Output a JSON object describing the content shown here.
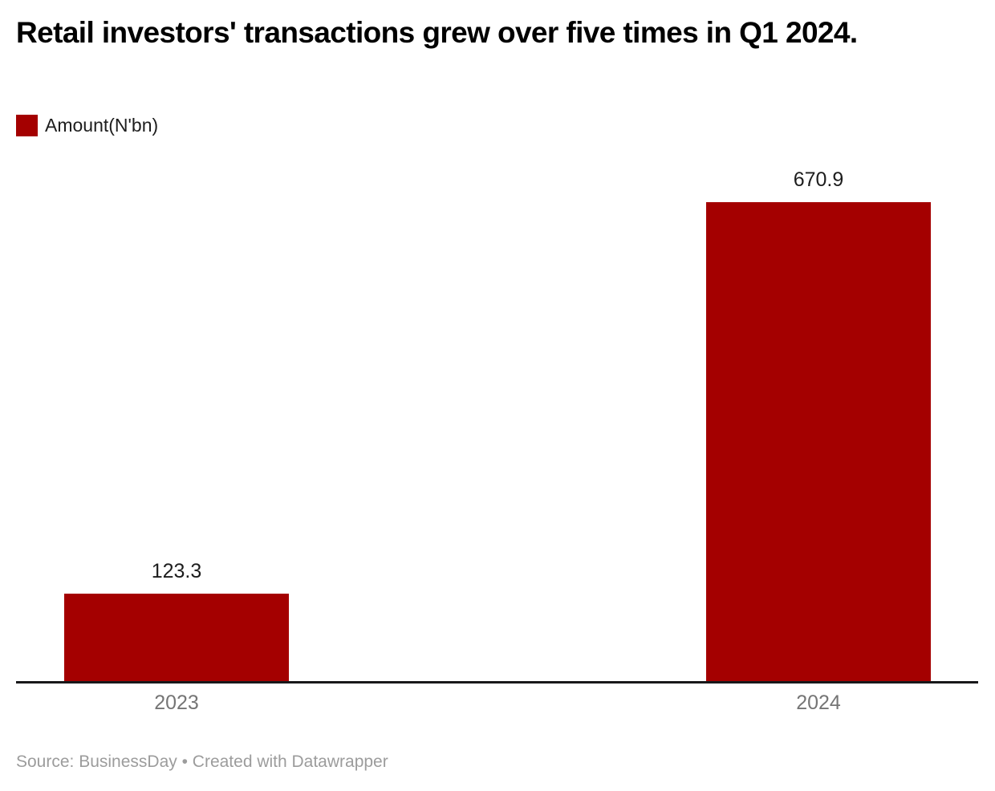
{
  "header": {
    "title": "Retail investors' transactions grew over five times in Q1 2024."
  },
  "legend": {
    "label": "Amount(N'bn)",
    "swatch_color": "#a40000"
  },
  "footer": {
    "source": "Source: BusinessDay • Created with Datawrapper"
  },
  "colors": {
    "bar_color": "#a40000",
    "axis_color": "#18181a",
    "title_color": "#000000",
    "value_label_color": "#1d1d1d",
    "category_label_color": "#757575",
    "source_color": "#9c9c9c"
  },
  "chart_data": {
    "type": "bar",
    "title": "Retail investors' transactions grew over five times in Q1 2024.",
    "categories": [
      "2023",
      "2024"
    ],
    "values": [
      123.3,
      670.9
    ],
    "value_labels": [
      "123.3",
      "670.9"
    ],
    "series_name": "Amount(N'bn)",
    "xlabel": "",
    "ylabel": "",
    "ylim": [
      0,
      700
    ],
    "grid": false,
    "legend_position": "top-left",
    "bar_color": "#a40000"
  }
}
